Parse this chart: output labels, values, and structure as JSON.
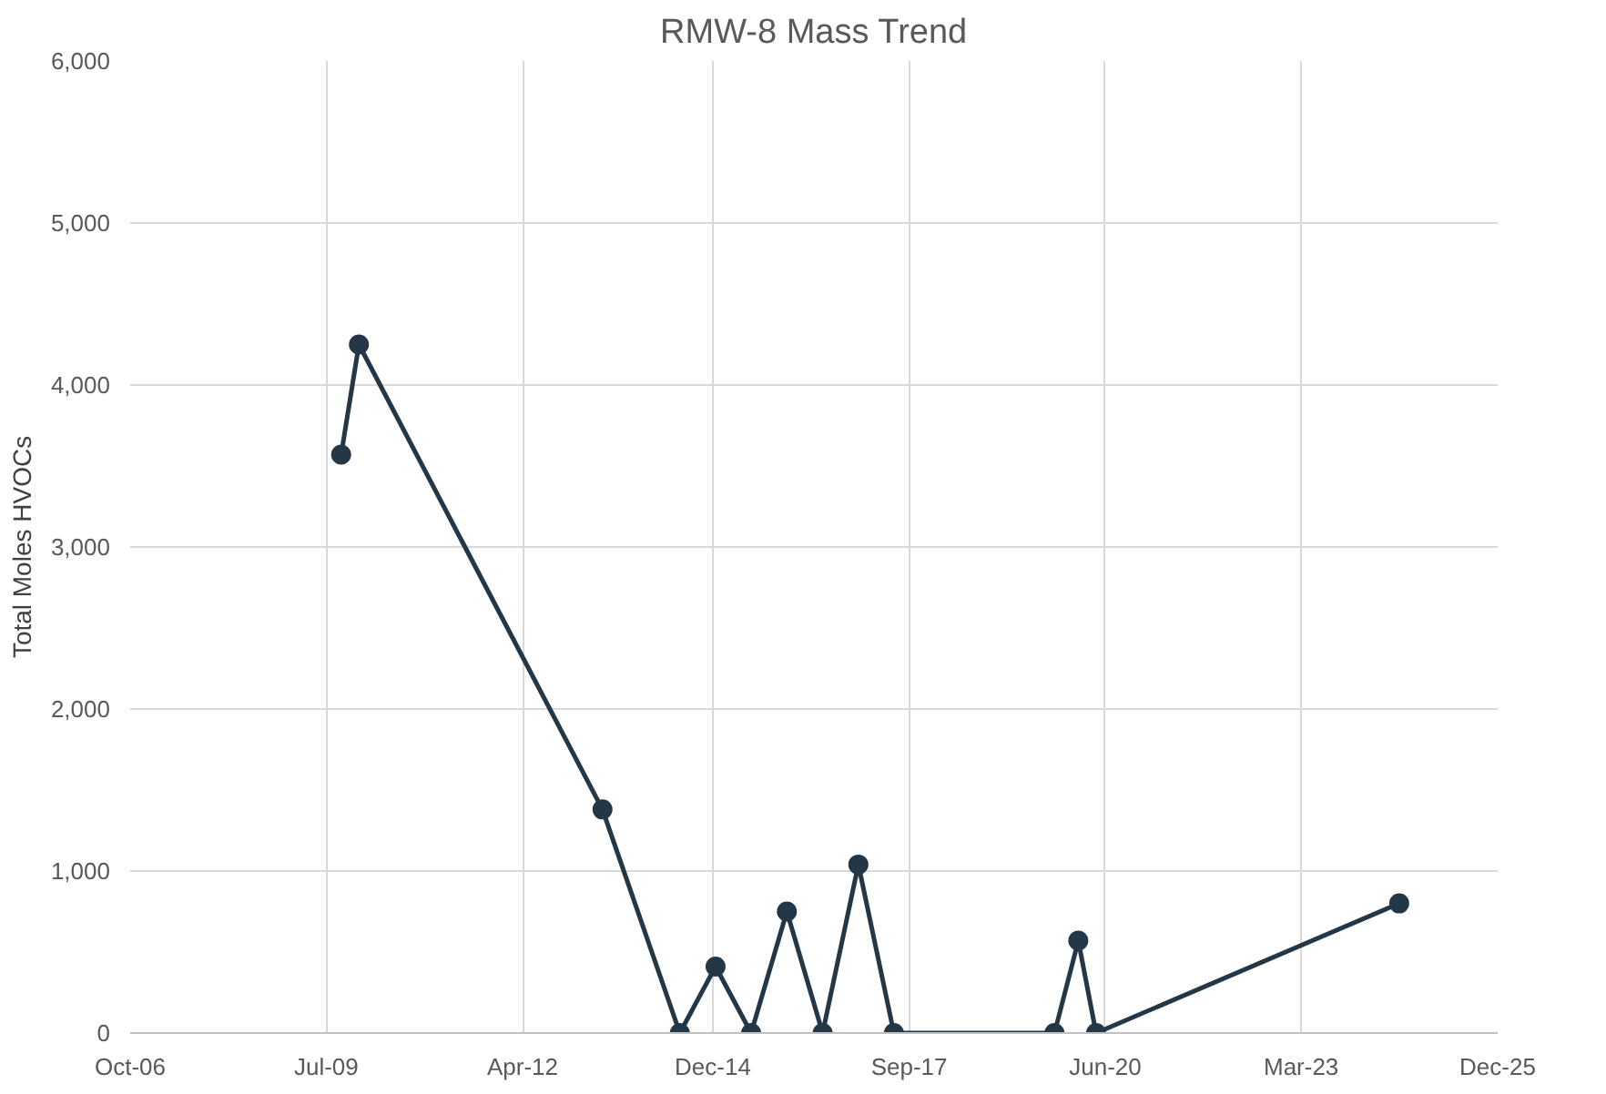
{
  "chart_data": {
    "type": "line",
    "title": "RMW-8 Mass Trend",
    "ylabel": "Total Moles HVOCs",
    "x": [
      "2009-09",
      "2009-12",
      "2013-05",
      "2014-06",
      "2014-12",
      "2015-06",
      "2015-12",
      "2016-06",
      "2016-12",
      "2017-06",
      "2019-09",
      "2020-01",
      "2020-04",
      "2024-07"
    ],
    "series": [
      {
        "color": "#243746",
        "values": [
          3570,
          4250,
          1380,
          0,
          410,
          0,
          750,
          0,
          1040,
          0,
          0,
          570,
          0,
          800
        ]
      }
    ],
    "xlim": [
      "2006-10-01",
      "2025-12-01"
    ],
    "xticks": [
      {
        "value": "2006-10-01",
        "label": "Oct-06"
      },
      {
        "value": "2009-07-01",
        "label": "Jul-09"
      },
      {
        "value": "2012-04-01",
        "label": "Apr-12"
      },
      {
        "value": "2014-12-01",
        "label": "Dec-14"
      },
      {
        "value": "2017-09-01",
        "label": "Sep-17"
      },
      {
        "value": "2020-06-01",
        "label": "Jun-20"
      },
      {
        "value": "2023-03-01",
        "label": "Mar-23"
      },
      {
        "value": "2025-12-01",
        "label": "Dec-25"
      }
    ],
    "ylim": [
      0,
      6000
    ],
    "yticks": [
      {
        "value": 0,
        "label": "0"
      },
      {
        "value": 1000,
        "label": "1,000"
      },
      {
        "value": 2000,
        "label": "2,000"
      },
      {
        "value": 3000,
        "label": "3,000"
      },
      {
        "value": 4000,
        "label": "4,000"
      },
      {
        "value": 5000,
        "label": "5,000"
      },
      {
        "value": 6000,
        "label": "6,000"
      }
    ],
    "grid": true,
    "marker": "circle",
    "line_style": "solid"
  }
}
